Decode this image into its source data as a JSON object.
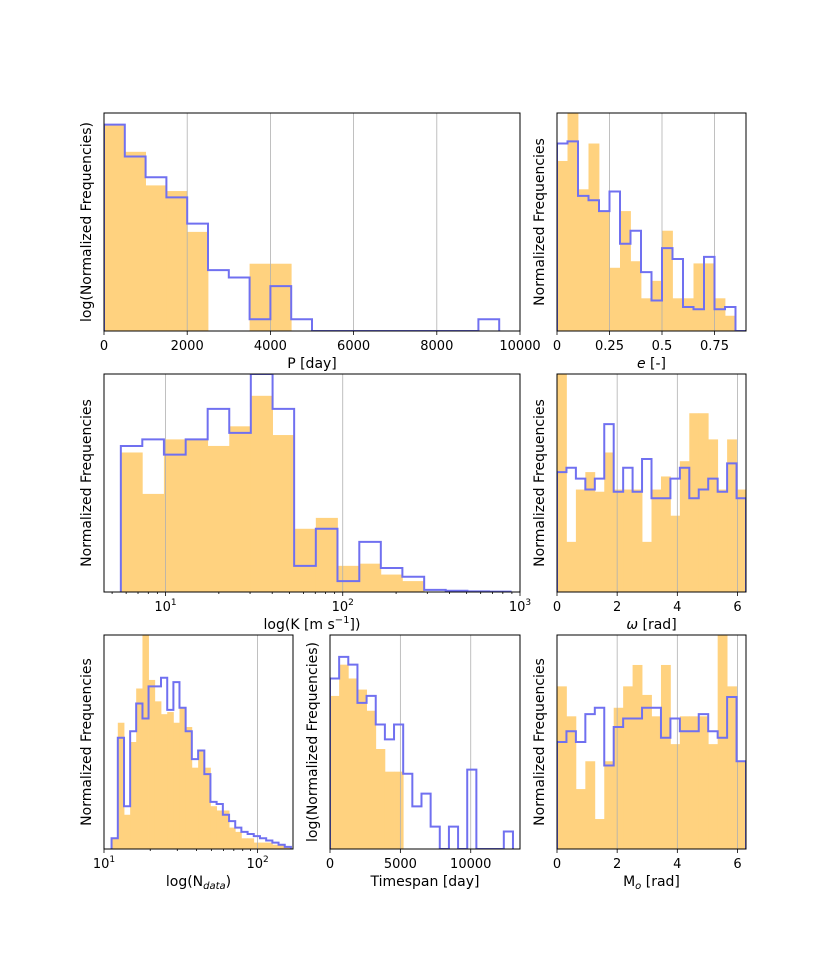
{
  "chart_data": [
    {
      "type": "bar",
      "panel": "period",
      "xlabel": "P [day]",
      "ylabel": "log(Normalized Frequencies)",
      "xscale": "linear",
      "yscale": "log",
      "xlim": [
        0,
        10000
      ],
      "ylim": [
        0.0015,
        0.12
      ],
      "xticks": [
        0,
        2000,
        4000,
        6000,
        8000,
        10000
      ],
      "xtick_labels": [
        "0",
        "2000",
        "4000",
        "6000",
        "8000",
        "10000"
      ],
      "grid": "x",
      "series": [
        {
          "name": "histogram (filled)",
          "bin_edges": [
            0,
            500,
            1000,
            1500,
            2000,
            2500,
            3000,
            3500,
            4000,
            4500,
            5000
          ],
          "values": [
            0.095,
            0.055,
            0.028,
            0.025,
            0.011,
            0.0015,
            0.0015,
            0.0058,
            0.0058,
            0.0015
          ]
        },
        {
          "name": "histogram (step)",
          "bin_edges": [
            0,
            500,
            1000,
            1500,
            2000,
            2500,
            3000,
            3500,
            4000,
            4500,
            5000,
            5500,
            6000,
            6500,
            7000,
            7500,
            8000,
            8500,
            9000,
            9500
          ],
          "values": [
            0.095,
            0.05,
            0.033,
            0.022,
            0.013,
            0.0051,
            0.0044,
            0.0019,
            0.0037,
            0.0019,
            0.0015,
            0.0015,
            0.0015,
            0.0015,
            0.0015,
            0.0015,
            0.0015,
            0.0015,
            0.0019
          ]
        }
      ]
    },
    {
      "type": "bar",
      "panel": "eccentricity",
      "xlabel": "e [-]",
      "ylabel": "Normalized Frequencies",
      "xscale": "linear",
      "yscale": "linear",
      "xlim": [
        0,
        0.9
      ],
      "ylim": [
        0,
        10
      ],
      "xticks": [
        0,
        0.25,
        0.5,
        0.75
      ],
      "xtick_labels": [
        "0",
        "0.25",
        "0.5",
        "0.75"
      ],
      "grid": "x",
      "series": [
        {
          "name": "histogram (filled)",
          "bin_edges": [
            0,
            0.05,
            0.1,
            0.15,
            0.2,
            0.25,
            0.3,
            0.35,
            0.4,
            0.45,
            0.5,
            0.55,
            0.6,
            0.65,
            0.7,
            0.75,
            0.8,
            0.85
          ],
          "values": [
            7.8,
            10.0,
            6.5,
            8.6,
            5.5,
            2.9,
            5.5,
            3.2,
            1.5,
            2.3,
            4.6,
            1.5,
            1.5,
            3.1,
            3.1,
            1.5,
            0.7
          ]
        },
        {
          "name": "histogram (step)",
          "bin_edges": [
            0,
            0.05,
            0.1,
            0.15,
            0.2,
            0.25,
            0.3,
            0.35,
            0.4,
            0.45,
            0.5,
            0.55,
            0.6,
            0.65,
            0.7,
            0.75,
            0.8,
            0.85
          ],
          "values": [
            8.6,
            8.7,
            6.2,
            6.0,
            5.5,
            6.4,
            4.0,
            4.6,
            2.7,
            1.4,
            3.8,
            3.3,
            1.1,
            1.0,
            3.4,
            1.0,
            1.1,
            0.0
          ]
        }
      ]
    },
    {
      "type": "bar",
      "panel": "semi-amplitude",
      "xlabel": "log(K [m s⁻¹])",
      "ylabel": "Normalized Frequencies",
      "xscale": "log",
      "yscale": "linear",
      "xlim": [
        4.5,
        1000
      ],
      "ylim": [
        0,
        10
      ],
      "xticks": [
        10,
        100,
        1000
      ],
      "xtick_labels": [
        "10¹",
        "10²",
        "10³"
      ],
      "grid": "x",
      "series": [
        {
          "name": "histogram (filled)",
          "bin_edges": [
            5.6,
            7.4,
            9.8,
            13.0,
            17.3,
            22.9,
            30.3,
            40.2,
            53.2,
            70.5,
            93.4,
            124,
            164,
            217,
            288,
            381,
            505,
            668,
            885
          ],
          "values": [
            6.4,
            4.5,
            7.0,
            7.0,
            6.7,
            7.6,
            9.0,
            7.2,
            2.9,
            3.4,
            1.2,
            1.3,
            0.8,
            0.5,
            0.0,
            0.0,
            0.0,
            0.0
          ]
        },
        {
          "name": "histogram (step)",
          "bin_edges": [
            5.6,
            7.4,
            9.8,
            13.0,
            17.3,
            22.9,
            30.3,
            40.2,
            53.2,
            70.5,
            93.4,
            124,
            164,
            217,
            288,
            381,
            505,
            668,
            885
          ],
          "values": [
            6.7,
            7.0,
            6.3,
            7.0,
            8.4,
            7.3,
            10.0,
            8.4,
            1.2,
            2.9,
            0.5,
            2.3,
            1.1,
            0.7,
            0.1,
            0.06,
            0.03,
            0.02
          ]
        }
      ]
    },
    {
      "type": "bar",
      "panel": "omega",
      "xlabel": "ω [rad]",
      "ylabel": "Normalized Frequencies",
      "xscale": "linear",
      "yscale": "linear",
      "xlim": [
        0,
        6.283
      ],
      "ylim": [
        0,
        10
      ],
      "xticks": [
        0,
        2,
        4,
        6
      ],
      "xtick_labels": [
        "0",
        "2",
        "4",
        "6"
      ],
      "grid": "x",
      "series": [
        {
          "name": "histogram (filled)",
          "bin_edges": [
            0,
            0.314,
            0.628,
            0.942,
            1.257,
            1.571,
            1.885,
            2.199,
            2.513,
            2.827,
            3.142,
            3.456,
            3.77,
            4.084,
            4.398,
            4.712,
            5.027,
            5.341,
            5.655,
            5.969
          ],
          "values": [
            10.0,
            2.3,
            4.7,
            5.5,
            4.6,
            6.4,
            4.7,
            4.7,
            4.7,
            2.3,
            4.7,
            5.3,
            3.5,
            6.0,
            8.2,
            8.2,
            7.0,
            4.7,
            7.0,
            4.7
          ]
        },
        {
          "name": "histogram (step)",
          "bin_edges": [
            0,
            0.314,
            0.628,
            0.942,
            1.257,
            1.571,
            1.885,
            2.199,
            2.513,
            2.827,
            3.142,
            3.456,
            3.77,
            4.084,
            4.398,
            4.712,
            5.027,
            5.341,
            5.655,
            5.969
          ],
          "values": [
            5.5,
            5.7,
            5.2,
            4.7,
            5.2,
            7.7,
            4.6,
            5.7,
            4.6,
            6.1,
            4.3,
            4.3,
            5.2,
            5.7,
            4.3,
            4.7,
            5.2,
            4.6,
            5.9,
            4.3
          ]
        }
      ]
    },
    {
      "type": "bar",
      "panel": "ndata",
      "xlabel": "log(N",
      "xlabel_sub": "data",
      "xlabel_end": ")",
      "ylabel": "Normalized Frequencies",
      "xscale": "log",
      "yscale": "linear",
      "xlim": [
        10,
        170
      ],
      "ylim": [
        0,
        10
      ],
      "xticks": [
        10,
        100
      ],
      "xtick_labels": [
        "10¹",
        "10²"
      ],
      "grid": "x",
      "series": [
        {
          "name": "histogram (filled)",
          "bin_edges": [
            11.2,
            12.3,
            13.5,
            14.8,
            16.2,
            17.8,
            19.5,
            21.4,
            23.5,
            25.8,
            28.3,
            31.0,
            34.0,
            37.3,
            41.0,
            45.0,
            49.3,
            54.1,
            59.4,
            65.2,
            71.5,
            78.4,
            86.1,
            94.4,
            103.6,
            113.7,
            124.8,
            136.9,
            150.2,
            164.8
          ],
          "values": [
            0.5,
            5.9,
            1.6,
            5.0,
            7.5,
            10.0,
            7.9,
            6.9,
            6.3,
            6.4,
            5.9,
            6.6,
            5.7,
            3.8,
            4.6,
            3.8,
            2.0,
            1.8,
            1.8,
            1.0,
            0.8,
            0.5,
            0.5,
            0.3,
            0.3,
            0.3,
            0.2,
            0.2,
            0.1
          ]
        },
        {
          "name": "histogram (step)",
          "bin_edges": [
            11.2,
            12.3,
            13.5,
            14.8,
            16.2,
            17.8,
            19.5,
            21.4,
            23.5,
            25.8,
            28.3,
            31.0,
            34.0,
            37.3,
            41.0,
            45.0,
            49.3,
            54.1,
            59.4,
            65.2,
            71.5,
            78.4,
            86.1,
            94.4,
            103.6,
            113.7,
            124.8,
            136.9,
            150.2,
            164.8
          ],
          "values": [
            0.5,
            5.2,
            2.0,
            5.5,
            6.8,
            6.1,
            7.6,
            7.6,
            8.0,
            6.5,
            7.8,
            6.6,
            5.5,
            4.2,
            4.6,
            3.5,
            2.2,
            2.1,
            1.6,
            1.3,
            1.0,
            0.8,
            0.7,
            0.6,
            0.5,
            0.4,
            0.3,
            0.2,
            0.1
          ]
        }
      ]
    },
    {
      "type": "bar",
      "panel": "timespan",
      "xlabel": "Timespan [day]",
      "ylabel": "log(Normalized Frequencies)",
      "xscale": "linear",
      "yscale": "log",
      "xlim": [
        0,
        13500
      ],
      "ylim": [
        1e-05,
        0.00025
      ],
      "xticks": [
        0,
        5000,
        10000
      ],
      "xtick_labels": [
        "0",
        "5000",
        "10000"
      ],
      "grid": "x",
      "series": [
        {
          "name": "histogram (filled)",
          "bin_edges": [
            0,
            650,
            1300,
            1950,
            2600,
            3250,
            3900,
            4550
          ],
          "values": [
            0.0001,
            0.00016,
            0.00013,
            0.00011,
            8e-05,
            4.5e-05,
            3.2e-05,
            3.2e-05
          ]
        },
        {
          "name": "histogram (step)",
          "bin_edges": [
            0,
            650,
            1300,
            1950,
            2600,
            3250,
            3900,
            4550,
            5200,
            5850,
            6500,
            7150,
            7800,
            8450,
            9100,
            9750,
            10400,
            11050,
            11700,
            12350,
            13000
          ],
          "values": [
            0.00013,
            0.00018,
            0.00016,
            9e-05,
            0.0001,
            6.5e-05,
            5.2e-05,
            6.5e-05,
            3.1e-05,
            1.9e-05,
            2.3e-05,
            1.4e-05,
            1e-05,
            1.4e-05,
            1e-05,
            3.3e-05,
            1e-05,
            1e-05,
            1e-05,
            1.3e-05
          ]
        }
      ]
    },
    {
      "type": "bar",
      "panel": "mean-anomaly",
      "xlabel": "M",
      "xlabel_sub": "o",
      "xlabel_end": " [rad]",
      "ylabel": "Normalized Frequencies",
      "xscale": "linear",
      "yscale": "linear",
      "xlim": [
        0,
        6.283
      ],
      "ylim": [
        0,
        10
      ],
      "xticks": [
        0,
        2,
        4,
        6
      ],
      "xtick_labels": [
        "0",
        "2",
        "4",
        "6"
      ],
      "grid": "x",
      "series": [
        {
          "name": "histogram (filled)",
          "bin_edges": [
            0,
            0.314,
            0.628,
            0.942,
            1.257,
            1.571,
            1.885,
            2.199,
            2.513,
            2.827,
            3.142,
            3.456,
            3.77,
            4.084,
            4.398,
            4.712,
            5.027,
            5.341,
            5.655,
            5.969
          ],
          "values": [
            7.6,
            6.2,
            2.8,
            4.1,
            1.4,
            4.1,
            6.6,
            7.6,
            8.6,
            7.2,
            6.2,
            8.6,
            4.9,
            6.2,
            6.2,
            6.2,
            4.9,
            10.0,
            7.6,
            4.1
          ]
        },
        {
          "name": "histogram (step)",
          "bin_edges": [
            0,
            0.314,
            0.628,
            0.942,
            1.257,
            1.571,
            1.885,
            2.199,
            2.513,
            2.827,
            3.142,
            3.456,
            3.77,
            4.084,
            4.398,
            4.712,
            5.027,
            5.341,
            5.655,
            5.969
          ],
          "values": [
            5.0,
            5.5,
            5.0,
            6.3,
            6.6,
            3.9,
            5.7,
            6.1,
            6.1,
            6.6,
            6.6,
            5.2,
            6.1,
            5.5,
            5.5,
            6.3,
            5.5,
            5.2,
            7.1,
            4.1
          ]
        }
      ]
    }
  ]
}
